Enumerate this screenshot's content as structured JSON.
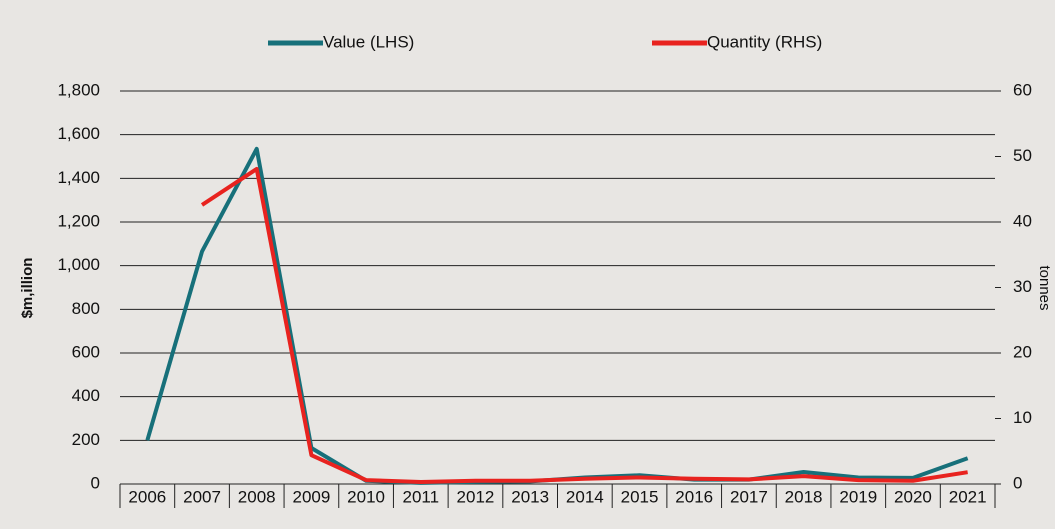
{
  "chart_data": {
    "type": "line",
    "y_label": "$m,illion",
    "y2_label": "tonnes",
    "categories": [
      "2006",
      "2007",
      "2008",
      "2009",
      "2010",
      "2011",
      "2012",
      "2013",
      "2014",
      "2015",
      "2016",
      "2017",
      "2018",
      "2019",
      "2020",
      "2021"
    ],
    "series": [
      {
        "name": "Value (LHS)",
        "color": "#17707a",
        "values": [
          200,
          1065,
          1535,
          165,
          15,
          5,
          10,
          12,
          30,
          40,
          20,
          20,
          55,
          30,
          28,
          118
        ]
      },
      {
        "name": "Quantity (RHS)",
        "color": "#e8231f",
        "axis": "y2",
        "values": [
          null,
          42.6,
          48.1,
          4.4,
          0.6,
          0.3,
          0.5,
          0.5,
          0.8,
          1.0,
          0.8,
          0.7,
          1.2,
          0.6,
          0.5,
          1.8
        ]
      }
    ],
    "ylim": [
      0,
      1800
    ],
    "yticks": [
      0,
      200,
      400,
      600,
      800,
      {
        "value": 1000,
        "label": "1,000"
      },
      {
        "value": 1200,
        "label": "1,200"
      },
      {
        "value": 1400,
        "label": "1,400"
      },
      {
        "value": 1600,
        "label": "1,600"
      },
      {
        "value": 1800,
        "label": "1,800"
      }
    ],
    "y2lim": [
      0,
      60
    ],
    "y2ticks": [
      0,
      10,
      20,
      30,
      40,
      50,
      60
    ],
    "grid": true
  }
}
